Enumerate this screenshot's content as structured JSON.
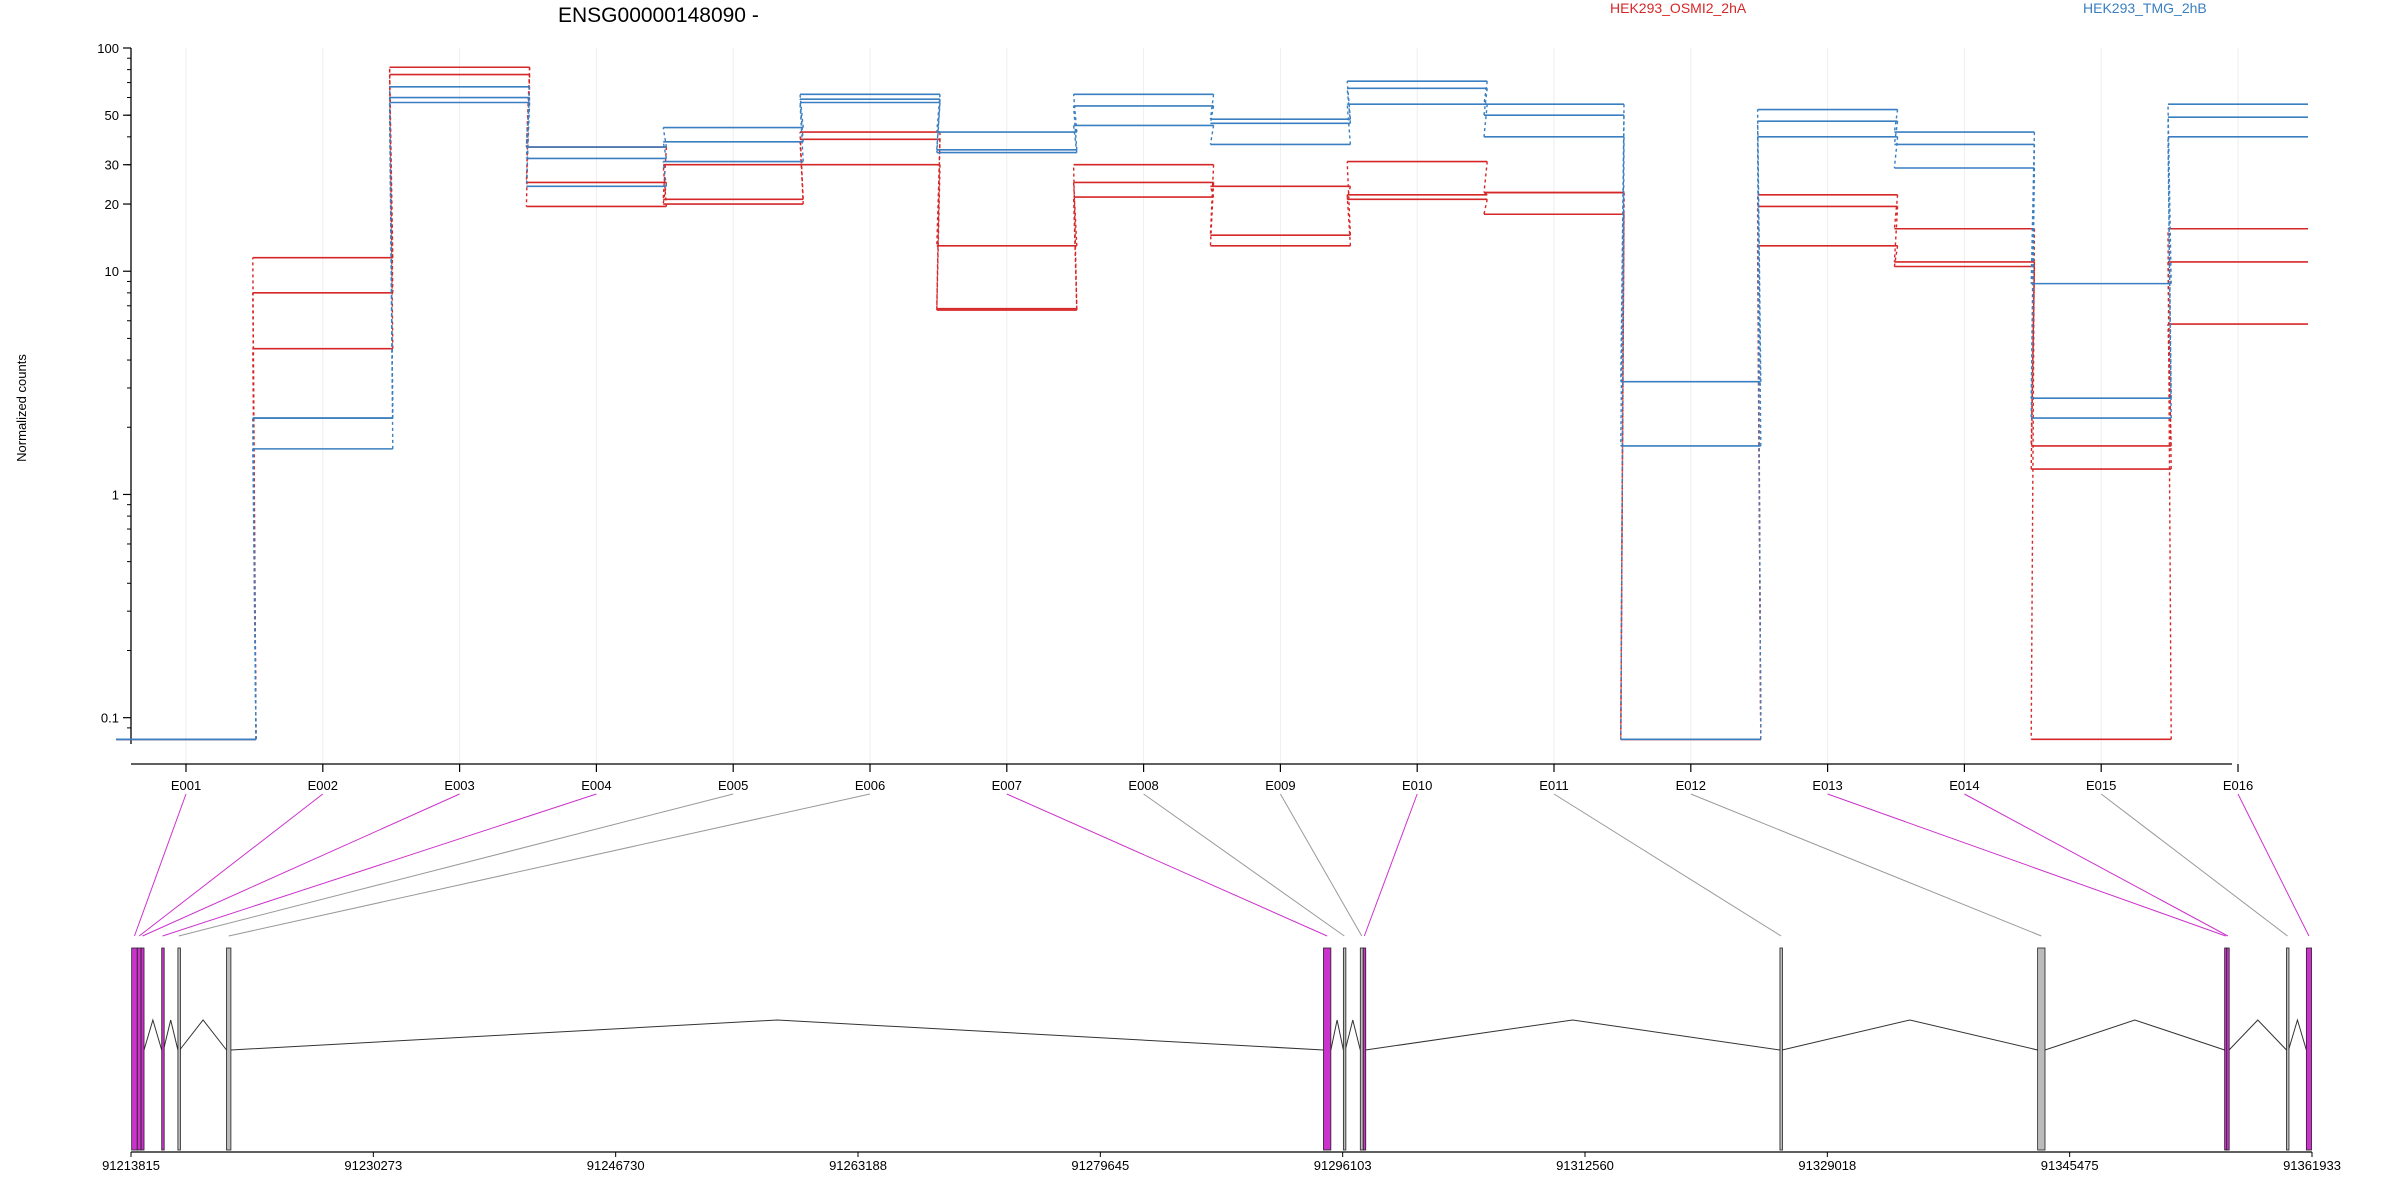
{
  "chart_data": {
    "type": "line",
    "title": "ENSG00000148090 -",
    "ylabel": "Normalized counts",
    "yscale": "log",
    "ylim": [
      0.08,
      100
    ],
    "yticks": [
      0.1,
      1,
      10,
      20,
      30,
      50,
      100
    ],
    "ytick_labels": [
      "0.1",
      "1",
      "10",
      "20",
      "30",
      "50",
      "100"
    ],
    "categories": [
      "E001",
      "E002",
      "E003",
      "E004",
      "E005",
      "E006",
      "E007",
      "E008",
      "E009",
      "E010",
      "E011",
      "E012",
      "E013",
      "E014",
      "E015",
      "E016"
    ],
    "colors": {
      "HEK293_OSMI2_2hA": "#d62728",
      "HEK293_TMG_2hB": "#3a7fc1",
      "gene_model_highlight": "#cc33cc",
      "gene_model_plain": "#bbbbbb"
    },
    "legend": [
      {
        "name": "HEK293_OSMI2_2hA",
        "color": "#d62728"
      },
      {
        "name": "HEK293_TMG_2hB",
        "color": "#3a7fc1"
      }
    ],
    "series": [
      {
        "name": "HEK293_OSMI2_2hA",
        "values": [
          0.08,
          11.5,
          82,
          36,
          21,
          42,
          6.8,
          30,
          14.5,
          31,
          22.5,
          0.08,
          22,
          15.5,
          0.08,
          15.5
        ]
      },
      {
        "name": "HEK293_OSMI2_2hA",
        "values": [
          0.08,
          8.0,
          76,
          25,
          20,
          39,
          13,
          25,
          13,
          22,
          22.5,
          0.08,
          19.5,
          11,
          1.3,
          11
        ]
      },
      {
        "name": "HEK293_OSMI2_2hA",
        "values": [
          0.08,
          4.5,
          82,
          19.5,
          30,
          30,
          6.7,
          21.5,
          24,
          21,
          18,
          0.08,
          13,
          10.5,
          1.65,
          5.8
        ]
      },
      {
        "name": "HEK293_TMG_2hB",
        "values": [
          0.08,
          2.2,
          67,
          36,
          44,
          62,
          42,
          62,
          48,
          71,
          56,
          3.2,
          53,
          42,
          8.8,
          56
        ]
      },
      {
        "name": "HEK293_TMG_2hB",
        "values": [
          0.08,
          2.2,
          60,
          32,
          38,
          59,
          35,
          55,
          46,
          66,
          50,
          1.65,
          47,
          37,
          2.7,
          49
        ]
      },
      {
        "name": "HEK293_TMG_2hB",
        "values": [
          0.08,
          1.6,
          57,
          24,
          31,
          57,
          34,
          45,
          37,
          56,
          40,
          0.08,
          40,
          29,
          2.2,
          40
        ]
      }
    ],
    "gene_model": {
      "x_tick_labels": [
        "91213815",
        "91230273",
        "91246730",
        "91263188",
        "91279645",
        "91296103",
        "91312560",
        "91329018",
        "91345475",
        "91361933"
      ],
      "x_tick_values": [
        91213815,
        91230273,
        91246730,
        91263188,
        91279645,
        91296103,
        91312560,
        91329018,
        91345475,
        91361933
      ],
      "range": [
        91213815,
        91361933
      ],
      "exons": [
        {
          "start": 91213860,
          "end": 91214240,
          "style": "highlight",
          "bin": "E001"
        },
        {
          "start": 91214240,
          "end": 91214500,
          "style": "highlight",
          "bin": "E002"
        },
        {
          "start": 91214500,
          "end": 91214700,
          "style": "highlight",
          "bin": "E003"
        },
        {
          "start": 91215900,
          "end": 91216020,
          "style": "highlight",
          "bin": "E004"
        },
        {
          "start": 91217000,
          "end": 91217120,
          "style": "plain",
          "bin": "E005"
        },
        {
          "start": 91220300,
          "end": 91220600,
          "style": "plain",
          "bin": "E006"
        },
        {
          "start": 91294800,
          "end": 91295300,
          "style": "highlight",
          "bin": "E007"
        },
        {
          "start": 91296150,
          "end": 91296280,
          "style": "plain",
          "bin": "E008"
        },
        {
          "start": 91297300,
          "end": 91297500,
          "style": "plain",
          "bin": "E009"
        },
        {
          "start": 91297500,
          "end": 91297650,
          "style": "highlight",
          "bin": "E010"
        },
        {
          "start": 91325800,
          "end": 91325950,
          "style": "plain",
          "bin": "E011"
        },
        {
          "start": 91343300,
          "end": 91343800,
          "style": "plain",
          "bin": "E012"
        },
        {
          "start": 91356000,
          "end": 91356140,
          "style": "highlight",
          "bin": "E013"
        },
        {
          "start": 91356140,
          "end": 91356300,
          "style": "highlight",
          "bin": "E014"
        },
        {
          "start": 91360200,
          "end": 91360340,
          "style": "plain",
          "bin": "E015"
        },
        {
          "start": 91361550,
          "end": 91361900,
          "style": "highlight",
          "bin": "E016"
        }
      ],
      "introns": [
        [
          91214700,
          91215900
        ],
        [
          91216020,
          91217000
        ],
        [
          91217120,
          91220300
        ],
        [
          91220600,
          91294800
        ],
        [
          91295300,
          91296150
        ],
        [
          91296280,
          91297300
        ],
        [
          91297650,
          91325800
        ],
        [
          91325950,
          91343300
        ],
        [
          91343800,
          91356000
        ],
        [
          91356300,
          91360200
        ],
        [
          91360340,
          91361550
        ]
      ]
    }
  }
}
